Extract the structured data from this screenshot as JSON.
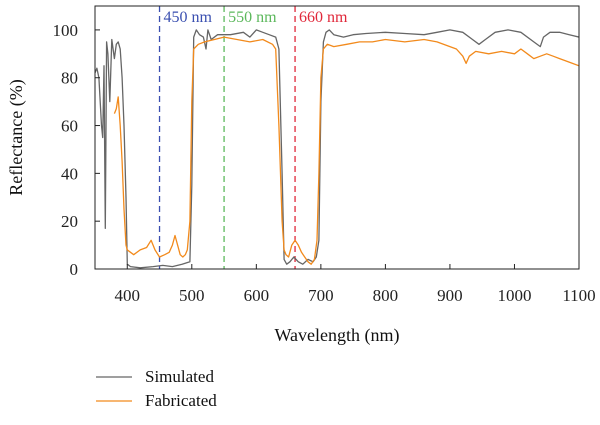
{
  "chart_data": {
    "type": "line",
    "title": "",
    "xlabel": "Wavelength (nm)",
    "ylabel": "Reflectance (%)",
    "xlim": [
      350,
      1100
    ],
    "ylim": [
      0,
      110
    ],
    "x_ticks": [
      400,
      500,
      600,
      700,
      800,
      900,
      1000,
      1100
    ],
    "y_ticks": [
      0,
      20,
      40,
      60,
      80,
      100
    ],
    "x_tick_labels": [
      "400",
      "500",
      "600",
      "700",
      "800",
      "900",
      "1000",
      "1100"
    ],
    "y_tick_labels": [
      "0",
      "20",
      "40",
      "60",
      "80",
      "100"
    ],
    "grid": false,
    "legend_position": "bottom-left, below plot",
    "markers": [
      {
        "x": 450,
        "label": "450 nm",
        "color": "#3a4fb0"
      },
      {
        "x": 550,
        "label": "550 nm",
        "color": "#5cb85c"
      },
      {
        "x": 660,
        "label": "660 nm",
        "color": "#e0283a"
      }
    ],
    "series": [
      {
        "name": "Simulated",
        "color": "#666666",
        "x": [
          350,
          353,
          356,
          360,
          362,
          364,
          366,
          368,
          370,
          373,
          376,
          380,
          383,
          386,
          389,
          392,
          395,
          398,
          400,
          405,
          420,
          440,
          455,
          470,
          485,
          497,
          500,
          503,
          507,
          512,
          518,
          522,
          525,
          530,
          540,
          560,
          580,
          590,
          600,
          610,
          620,
          630,
          635,
          640,
          643,
          647,
          652,
          658,
          665,
          672,
          680,
          688,
          693,
          697,
          700,
          704,
          708,
          713,
          720,
          735,
          750,
          770,
          800,
          830,
          860,
          880,
          900,
          920,
          935,
          945,
          955,
          970,
          990,
          1010,
          1030,
          1040,
          1045,
          1055,
          1070,
          1085,
          1100
        ],
        "y": [
          82,
          84,
          80,
          60,
          55,
          85,
          17,
          95,
          90,
          70,
          96,
          88,
          94,
          95,
          92,
          80,
          60,
          30,
          2,
          1,
          0.5,
          1,
          1.5,
          1,
          2,
          3,
          35,
          97,
          100,
          98,
          97,
          92,
          100,
          96,
          98,
          98,
          99,
          97,
          100,
          99,
          98,
          97,
          92,
          40,
          4,
          2,
          3,
          5,
          3,
          2,
          4,
          3,
          5,
          12,
          70,
          95,
          99,
          100,
          98,
          97,
          98,
          98.5,
          99,
          98.5,
          98,
          99,
          100,
          99,
          96,
          94,
          96,
          99,
          100,
          99,
          95,
          93,
          97,
          99,
          99,
          98,
          97
        ]
      },
      {
        "name": "Fabricated",
        "color": "#f28a1c",
        "x": [
          380,
          383,
          386,
          389,
          392,
          395,
          398,
          400,
          405,
          410,
          420,
          430,
          437,
          443,
          450,
          458,
          465,
          470,
          474,
          478,
          482,
          486,
          490,
          493,
          497,
          500,
          503,
          510,
          520,
          535,
          550,
          570,
          590,
          610,
          625,
          630,
          635,
          640,
          643,
          646,
          650,
          655,
          660,
          665,
          670,
          675,
          680,
          685,
          690,
          694,
          697,
          700,
          704,
          710,
          720,
          740,
          760,
          780,
          800,
          830,
          860,
          880,
          900,
          910,
          920,
          925,
          930,
          940,
          960,
          980,
          1000,
          1010,
          1020,
          1030,
          1040,
          1050,
          1060,
          1070,
          1080,
          1090,
          1100
        ],
        "y": [
          65,
          67,
          72,
          60,
          45,
          25,
          10,
          8,
          7,
          6,
          8,
          9,
          12,
          8,
          5,
          6,
          7,
          10,
          14,
          10,
          6,
          5,
          6,
          8,
          20,
          70,
          92,
          94,
          95,
          96,
          97,
          96,
          95,
          96,
          94,
          92,
          60,
          20,
          8,
          6,
          5,
          10,
          12,
          10,
          7,
          5,
          3,
          2,
          4,
          12,
          40,
          80,
          92,
          94,
          93,
          94,
          95,
          95,
          96,
          95,
          96,
          95,
          93,
          92,
          89,
          86,
          89,
          91,
          90,
          91,
          90,
          92,
          90,
          88,
          89,
          90,
          89,
          88,
          87,
          86,
          85
        ]
      }
    ]
  }
}
